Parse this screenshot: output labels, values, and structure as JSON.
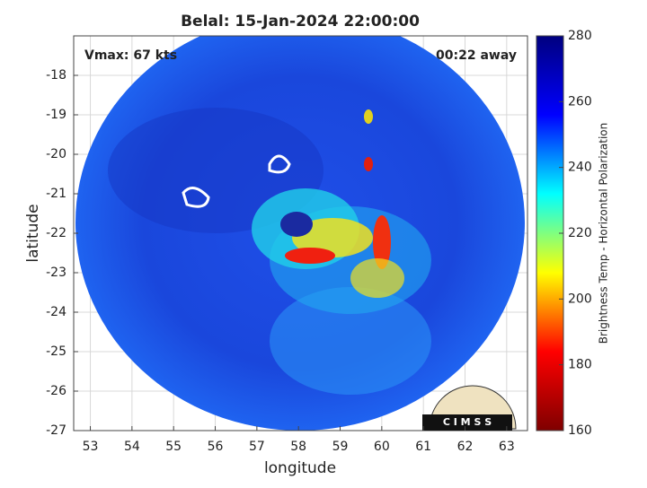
{
  "chart_data": {
    "type": "image",
    "title": "Belal: 15-Jan-2024 22:00:00",
    "x_label": "longitude",
    "y_label": "latitude",
    "colorbar_label": "Brightness Temp - Horizontal Polarization",
    "annotations": [
      "Vmax: 67 kts",
      "00:22 away"
    ],
    "logo": "C I M S S",
    "xlim": [
      52.6,
      63.5
    ],
    "xticks": [
      53,
      54,
      55,
      56,
      57,
      58,
      59,
      60,
      61,
      62,
      63
    ],
    "ylim": [
      -27,
      -17
    ],
    "yticks": [
      -27,
      -26,
      -25,
      -24,
      -23,
      -22,
      -21,
      -20,
      -19,
      -18
    ],
    "clim": [
      160,
      280
    ],
    "cticks": [
      160,
      180,
      200,
      220,
      240,
      260,
      280
    ],
    "colormap": [
      "#7f0000",
      "#ff0000",
      "#ffff00",
      "#00ffff",
      "#0000ff",
      "#00007f"
    ],
    "grid": true
  }
}
